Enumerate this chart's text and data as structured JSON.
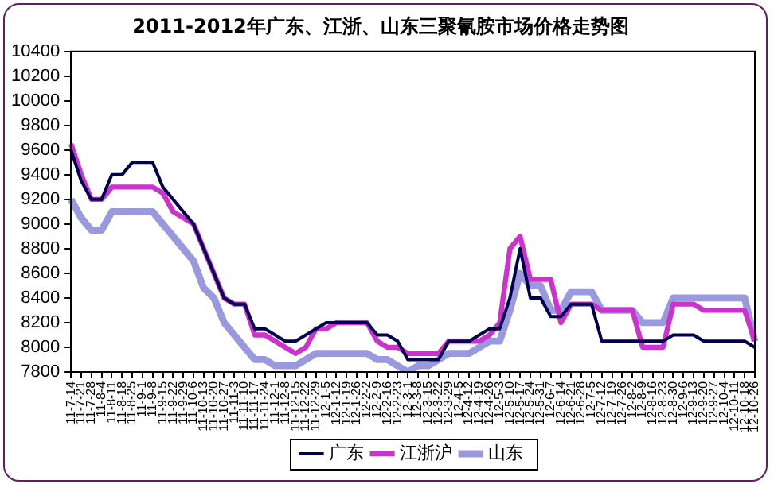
{
  "chart_data": {
    "type": "line",
    "title": "2011-2012年广东、江浙、山东三聚氰胺市场价格走势图",
    "categories": [
      "11-7-14",
      "11-7-21",
      "11-7-28",
      "11-8-4",
      "11-8-11",
      "11-8-18",
      "11-8-25",
      "11-9-1",
      "11-9-8",
      "11-9-15",
      "11-9-22",
      "11-9-29",
      "11-10-6",
      "11-10-13",
      "11-10-20",
      "11-10-27",
      "11-11-3",
      "11-11-10",
      "11-11-17",
      "11-11-24",
      "11-12-1",
      "11-12-8",
      "11-12-15",
      "11-12-22",
      "11-12-29",
      "12-1-5",
      "12-1-12",
      "12-1-19",
      "12-1-26",
      "12-2-2",
      "12-2-9",
      "12-2-16",
      "12-2-23",
      "12-3-1",
      "12-3-8",
      "12-3-15",
      "12-3-22",
      "12-3-29",
      "12-4-5",
      "12-4-12",
      "12-4-19",
      "12-4-26",
      "12-5-3",
      "12-5-10",
      "12-5-17",
      "12-5-24",
      "12-5-31",
      "12-6-7",
      "12-6-14",
      "12-6-21",
      "12-6-28",
      "12-7-5",
      "12-7-12",
      "12-7-19",
      "12-7-26",
      "12-8-2",
      "12-8-9",
      "12-8-16",
      "12-8-23",
      "12-8-30",
      "12-9-6",
      "12-9-13",
      "12-9-20",
      "12-9-27",
      "12-10-4",
      "12-10-11",
      "12-10-18",
      "12-10-26"
    ],
    "series": [
      {
        "name": "广东",
        "color": "#000050",
        "values": [
          9600,
          9350,
          9200,
          9200,
          9400,
          9400,
          9500,
          9500,
          9500,
          9300,
          9200,
          9100,
          9000,
          8800,
          8600,
          8400,
          8350,
          8350,
          8150,
          8150,
          8100,
          8050,
          8050,
          8100,
          8150,
          8200,
          8200,
          8200,
          8200,
          8200,
          8100,
          8100,
          8050,
          7900,
          7900,
          7900,
          7900,
          8050,
          8050,
          8050,
          8100,
          8150,
          8150,
          8400,
          8800,
          8400,
          8400,
          8250,
          8250,
          8350,
          8350,
          8350,
          8050,
          8050,
          8050,
          8050,
          8050,
          8050,
          8050,
          8100,
          8100,
          8100,
          8050,
          8050,
          8050,
          8050,
          8050,
          8000
        ]
      },
      {
        "name": "江浙沪",
        "color": "#cc33cc",
        "values": [
          9650,
          9400,
          9200,
          9200,
          9300,
          9300,
          9300,
          9300,
          9300,
          9250,
          9100,
          9050,
          9000,
          8800,
          8600,
          8400,
          8350,
          8350,
          8100,
          8100,
          8050,
          8000,
          7950,
          8000,
          8150,
          8150,
          8200,
          8200,
          8200,
          8200,
          8050,
          8000,
          8000,
          7950,
          7950,
          7950,
          7950,
          8050,
          8050,
          8050,
          8050,
          8100,
          8200,
          8800,
          8900,
          8550,
          8550,
          8550,
          8200,
          8350,
          8350,
          8350,
          8300,
          8300,
          8300,
          8300,
          8000,
          8000,
          8000,
          8350,
          8350,
          8350,
          8300,
          8300,
          8300,
          8300,
          8300,
          8050
        ]
      },
      {
        "name": "山东",
        "color": "#9999dd",
        "values": [
          9200,
          9050,
          8950,
          8950,
          9100,
          9100,
          9100,
          9100,
          9100,
          9000,
          8900,
          8800,
          8700,
          8480,
          8400,
          8200,
          8100,
          8000,
          7900,
          7900,
          7850,
          7850,
          7850,
          7900,
          7950,
          7950,
          7950,
          7950,
          7950,
          7950,
          7900,
          7900,
          7850,
          7800,
          7850,
          7850,
          7900,
          7950,
          7950,
          7950,
          8000,
          8050,
          8050,
          8300,
          8600,
          8500,
          8500,
          8300,
          8300,
          8450,
          8450,
          8450,
          8300,
          8300,
          8300,
          8300,
          8200,
          8200,
          8200,
          8400,
          8400,
          8400,
          8400,
          8400,
          8400,
          8400,
          8400,
          8050
        ]
      }
    ],
    "ylim": [
      7800,
      10400
    ],
    "yticks": [
      7800,
      8000,
      8200,
      8400,
      8600,
      8800,
      9000,
      9200,
      9400,
      9600,
      9800,
      10000,
      10200,
      10400
    ],
    "grid": false,
    "legend": "bottom",
    "marker": "none",
    "line_style": "solid"
  }
}
